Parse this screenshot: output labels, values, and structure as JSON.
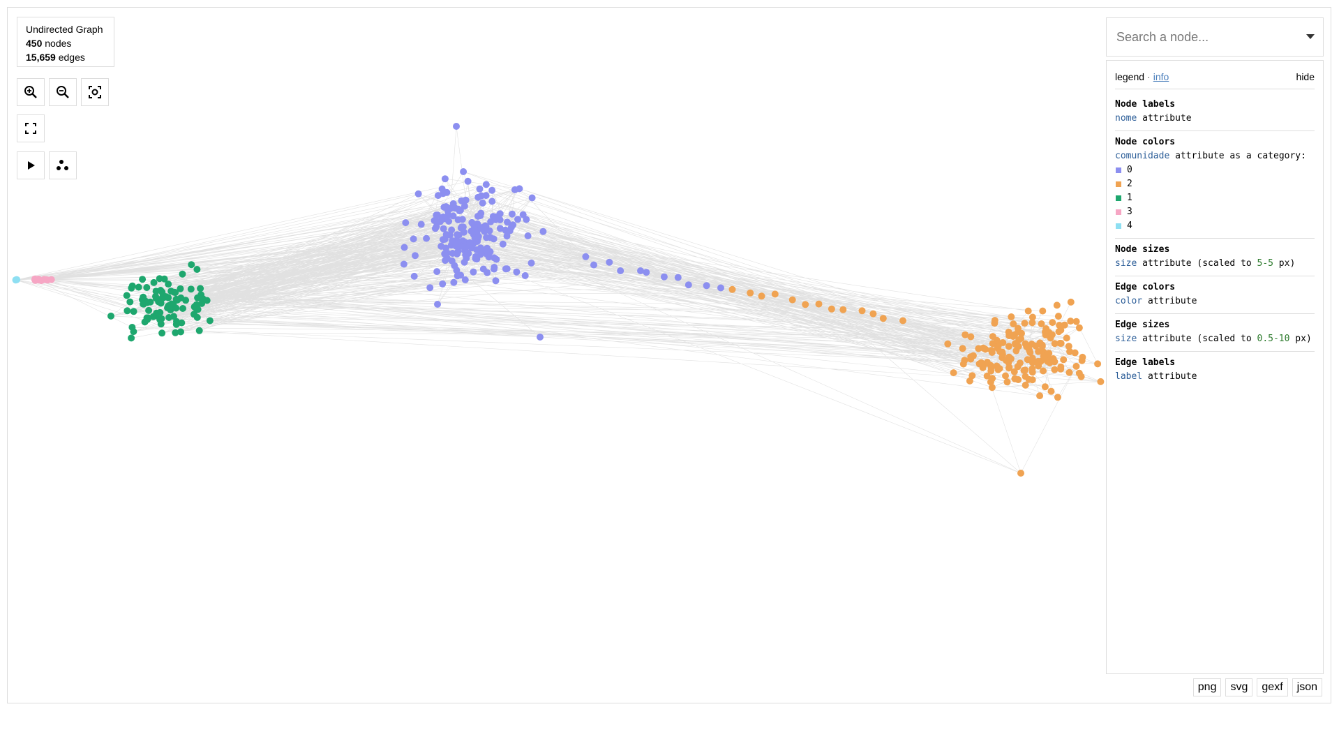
{
  "graph_info": {
    "type": "Undirected Graph",
    "node_count": "450",
    "node_word": "nodes",
    "edge_count": "15,659",
    "edge_word": "edges"
  },
  "controls": {
    "zoom_in": "zoom-in-icon",
    "zoom_out": "zoom-out-icon",
    "reset_view": "focus-icon",
    "fullscreen": "fullscreen-icon",
    "play_layout": "play-icon",
    "layout_noverlap": "scatter-icon"
  },
  "search": {
    "placeholder": "Search a node..."
  },
  "legend": {
    "title": "legend",
    "sep": "·",
    "info_link": "info",
    "hide_link": "hide",
    "node_labels": {
      "title": "Node labels",
      "attr": "nome",
      "rest": " attribute"
    },
    "node_colors": {
      "title": "Node colors",
      "attr": "comunidade",
      "rest": " attribute as a category:",
      "categories": [
        {
          "label": "0",
          "color": "#8c8ff0"
        },
        {
          "label": "2",
          "color": "#f0a352"
        },
        {
          "label": "1",
          "color": "#1ea76e"
        },
        {
          "label": "3",
          "color": "#f6a6c4"
        },
        {
          "label": "4",
          "color": "#8edff2"
        }
      ]
    },
    "node_sizes": {
      "title": "Node sizes",
      "attr": "size",
      "mid": " attribute (scaled to ",
      "range": "5-5",
      "end": " px)"
    },
    "edge_colors": {
      "title": "Edge colors",
      "attr": "color",
      "rest": " attribute"
    },
    "edge_sizes": {
      "title": "Edge sizes",
      "attr": "size",
      "mid": " attribute (scaled to ",
      "range": "0.5-10",
      "end": " px)"
    },
    "edge_labels": {
      "title": "Edge labels",
      "attr": "label",
      "rest": " attribute"
    }
  },
  "export": [
    "png",
    "svg",
    "gexf",
    "json"
  ],
  "colors": {
    "community_0": "#8c8ff0",
    "community_1": "#1ea76e",
    "community_2": "#f0a352",
    "community_3": "#f6a6c4",
    "community_4": "#8edff2",
    "edge": "#c8c8c8"
  }
}
